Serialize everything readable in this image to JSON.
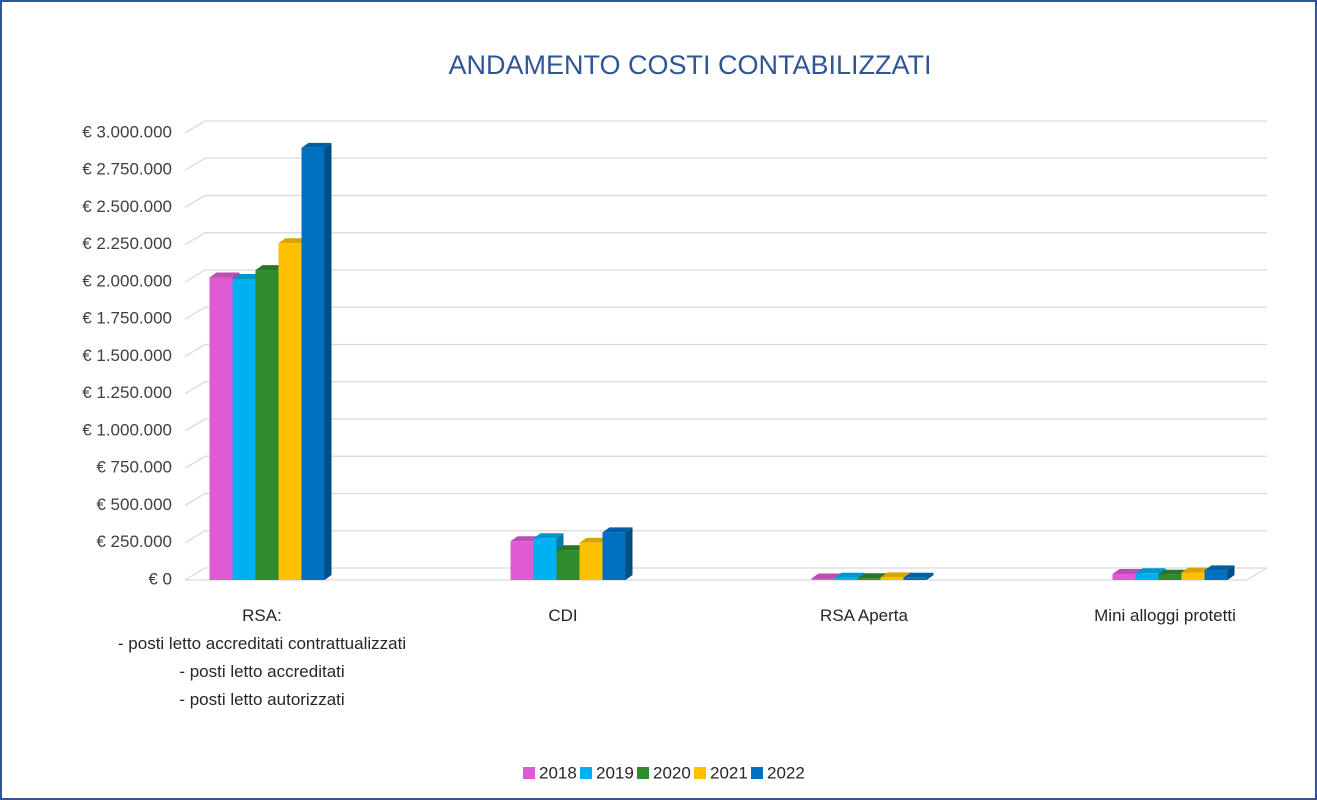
{
  "chart_data": {
    "type": "bar3d",
    "title": "ANDAMENTO COSTI CONTABILIZZATI",
    "categories": [
      "RSA:\n- posti letto accreditati contrattualizzati\n- posti letto accreditati\n- posti letto autorizzati",
      "CDI",
      "RSA Aperta",
      "Mini alloggi protetti"
    ],
    "series": [
      {
        "name": "2018",
        "color": "#e05bd3",
        "values": [
          2030000,
          260000,
          10000,
          40000
        ]
      },
      {
        "name": "2019",
        "color": "#00b0f0",
        "values": [
          2020000,
          280000,
          15000,
          45000
        ]
      },
      {
        "name": "2020",
        "color": "#2e8b2e",
        "values": [
          2080000,
          200000,
          12000,
          35000
        ]
      },
      {
        "name": "2021",
        "color": "#ffc000",
        "values": [
          2260000,
          250000,
          18000,
          50000
        ]
      },
      {
        "name": "2022",
        "color": "#0070c0",
        "values": [
          2900000,
          320000,
          15000,
          65000
        ]
      }
    ],
    "ylim": [
      0,
      3000000
    ],
    "yticks": [
      {
        "value": 0,
        "label": "€ 0"
      },
      {
        "value": 250000,
        "label": "€ 250.000"
      },
      {
        "value": 500000,
        "label": "€ 500.000"
      },
      {
        "value": 750000,
        "label": "€ 750.000"
      },
      {
        "value": 1000000,
        "label": "€ 1.000.000"
      },
      {
        "value": 1250000,
        "label": "€ 1.250.000"
      },
      {
        "value": 1500000,
        "label": "€ 1.500.000"
      },
      {
        "value": 1750000,
        "label": "€ 1.750.000"
      },
      {
        "value": 2000000,
        "label": "€ 2.000.000"
      },
      {
        "value": 2250000,
        "label": "€ 2.250.000"
      },
      {
        "value": 2500000,
        "label": "€ 2.500.000"
      },
      {
        "value": 2750000,
        "label": "€ 2.750.000"
      },
      {
        "value": 3000000,
        "label": "€ 3.000.000"
      }
    ],
    "grid": true,
    "legend": "bottom"
  }
}
